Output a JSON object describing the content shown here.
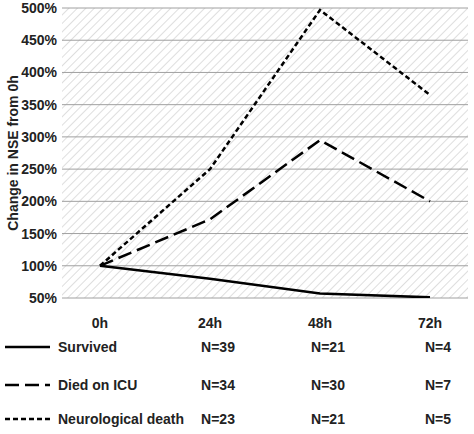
{
  "chart_data": {
    "type": "line",
    "y_label": "Change in NSE from 0h",
    "categories": [
      "0h",
      "24h",
      "48h",
      "72h"
    ],
    "ylim": [
      50,
      500
    ],
    "yticks": [
      {
        "value": 50,
        "label": "50%"
      },
      {
        "value": 100,
        "label": "100%"
      },
      {
        "value": 150,
        "label": "150%"
      },
      {
        "value": 200,
        "label": "200%"
      },
      {
        "value": 250,
        "label": "250%"
      },
      {
        "value": 300,
        "label": "300%"
      },
      {
        "value": 350,
        "label": "350%"
      },
      {
        "value": 400,
        "label": "400%"
      },
      {
        "value": 450,
        "label": "450%"
      },
      {
        "value": 500,
        "label": "500%"
      }
    ],
    "grid": true,
    "legend": "bottom",
    "series": [
      {
        "name": "Survived",
        "color": "#000000",
        "line_style": "solid",
        "values": [
          100,
          80,
          57,
          51
        ],
        "n": [
          null,
          39,
          21,
          4
        ],
        "n_labels": [
          null,
          "N=39",
          "N=21",
          "N=4"
        ]
      },
      {
        "name": "Died on ICU",
        "color": "#000000",
        "line_style": "dashed",
        "values": [
          100,
          172,
          295,
          200
        ],
        "n": [
          null,
          34,
          30,
          7
        ],
        "n_labels": [
          null,
          "N=34",
          "N=30",
          "N=7"
        ]
      },
      {
        "name": "Neurological death",
        "color": "#000000",
        "line_style": "dotted",
        "values": [
          100,
          250,
          497,
          365
        ],
        "n": [
          null,
          23,
          21,
          5
        ],
        "n_labels": [
          null,
          "N=23",
          "N=21",
          "N=5"
        ]
      }
    ]
  }
}
